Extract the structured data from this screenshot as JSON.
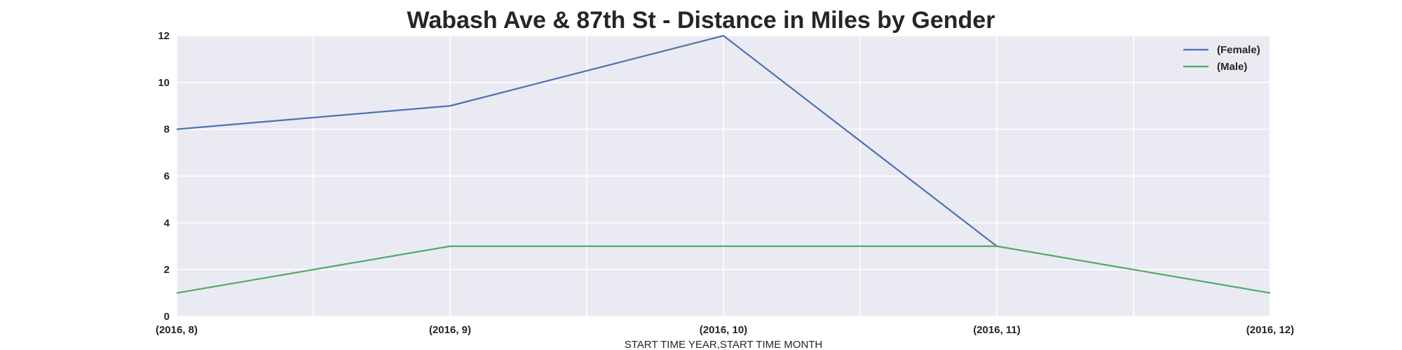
{
  "chart_data": {
    "type": "line",
    "title": "Wabash Ave & 87th St - Distance in Miles by Gender",
    "xlabel": "START TIME YEAR,START TIME MONTH",
    "ylabel": "",
    "categories": [
      "(2016, 8)",
      "(2016, 9)",
      "(2016, 10)",
      "(2016, 11)",
      "(2016, 12)"
    ],
    "ylim": [
      0,
      12
    ],
    "yticks": [
      0,
      2,
      4,
      6,
      8,
      10,
      12
    ],
    "grid": true,
    "legend_position": "top-right",
    "series": [
      {
        "name": "(Female)",
        "color": "#4c72b0",
        "values": [
          8,
          9,
          12,
          3,
          null
        ]
      },
      {
        "name": "(Male)",
        "color": "#55a868",
        "values": [
          1,
          3,
          3,
          3,
          1
        ]
      }
    ]
  }
}
